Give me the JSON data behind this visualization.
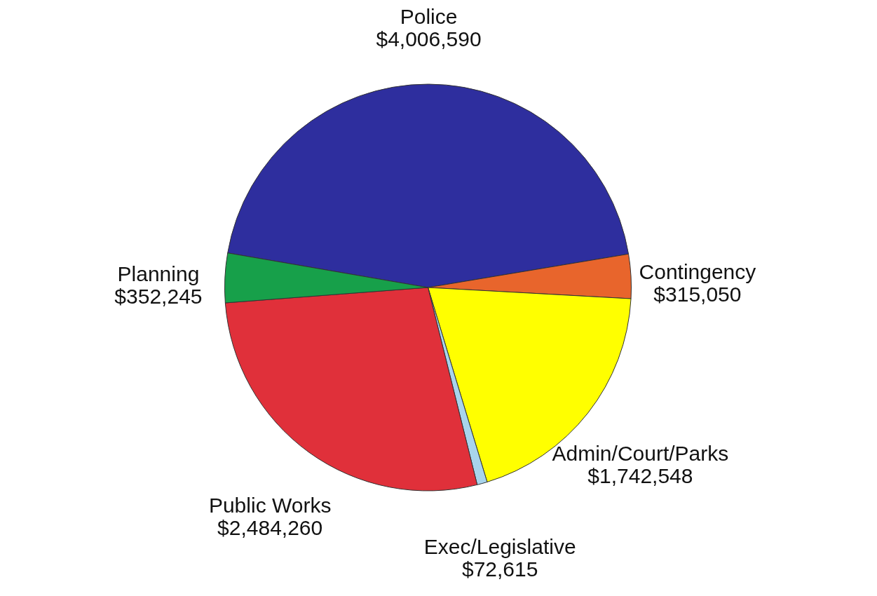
{
  "chart_data": {
    "type": "pie",
    "categories": [
      "Police",
      "Contingency",
      "Admin/Court/Parks",
      "Exec/Legislative",
      "Public Works",
      "Planning"
    ],
    "values": [
      4006590,
      315050,
      1742548,
      72615,
      2484260,
      352245
    ],
    "value_labels": [
      "$4,006,590",
      "$315,050",
      "$1,742,548",
      "$72,615",
      "$2,484,260",
      "$352,245"
    ],
    "colors": [
      "#2e2e9e",
      "#e8652c",
      "#ffff00",
      "#a8d4ec",
      "#e0303a",
      "#17a04a"
    ],
    "legend": false
  }
}
